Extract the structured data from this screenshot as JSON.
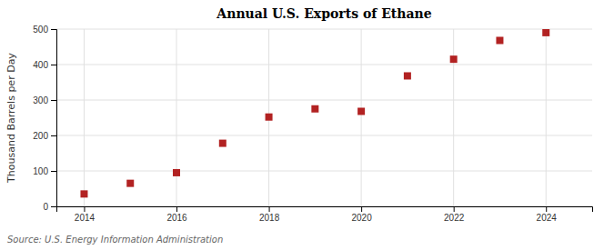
{
  "chart_data": {
    "type": "scatter",
    "title": "Annual U.S. Exports of Ethane",
    "ylabel": "Thousand Barrels per Day",
    "annotation": "Source: U.S. Energy Information Administration",
    "x": [
      2014,
      2015,
      2016,
      2017,
      2018,
      2019,
      2020,
      2021,
      2022,
      2023,
      2024
    ],
    "values": [
      35,
      65,
      95,
      178,
      252,
      275,
      268,
      368,
      415,
      468,
      490
    ],
    "color": "#b22222",
    "marker": "square",
    "xlim": [
      2013.4,
      2025.0
    ],
    "ylim": [
      0,
      500
    ],
    "xticks": [
      2014,
      2016,
      2018,
      2020,
      2022,
      2024
    ],
    "yticks": [
      0,
      100,
      200,
      300,
      400,
      500
    ],
    "grid": true
  }
}
